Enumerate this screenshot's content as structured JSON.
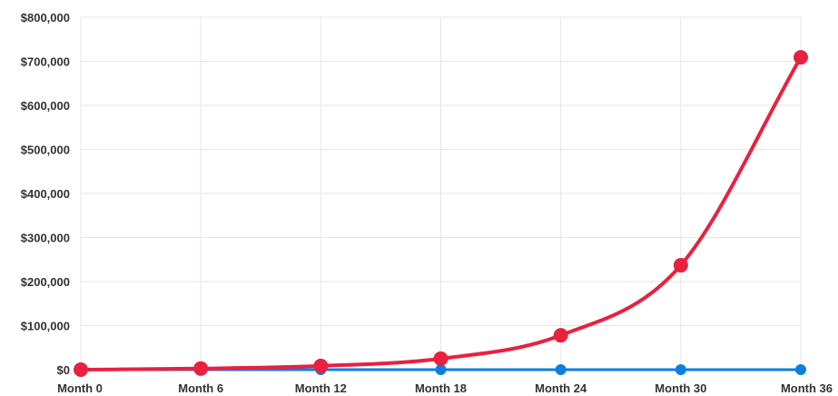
{
  "chart_data": {
    "type": "line",
    "title": "",
    "xlabel": "",
    "ylabel": "",
    "categories": [
      "Month 0",
      "Month 6",
      "Month 12",
      "Month 18",
      "Month 24",
      "Month 30",
      "Month 36"
    ],
    "y_ticks": [
      "$0",
      "$100,000",
      "$200,000",
      "$300,000",
      "$400,000",
      "$500,000",
      "$600,000",
      "$700,000",
      "$800,000"
    ],
    "ylim": [
      0,
      800000
    ],
    "grid": true,
    "legend": "none",
    "series": [
      {
        "color": "#e8213f",
        "values": [
          0,
          2500,
          8500,
          25000,
          78000,
          237000,
          709000
        ]
      },
      {
        "color": "#0b7fe0",
        "values": [
          0,
          0,
          0,
          0,
          0,
          0,
          0
        ]
      }
    ]
  }
}
